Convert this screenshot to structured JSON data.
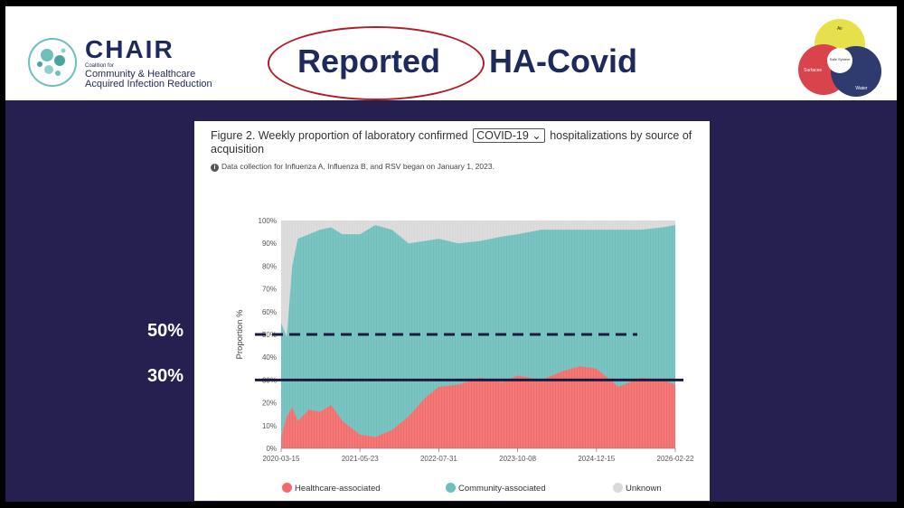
{
  "header": {
    "logo_word": "CHAIR",
    "logo_coalition": "Coalition for",
    "logo_line1": "Community & Healthcare",
    "logo_line2": "Acquired Infection Reduction",
    "title_circled": "Reported",
    "title_rest": "HA-Covid",
    "venn_labels": [
      "Air",
      "Safe System",
      "Surfaces",
      "Water"
    ]
  },
  "colors": {
    "healthcare": "#f26b6b",
    "community": "#6fbfbd",
    "unknown": "#d9d9d9",
    "navy": "#25204f",
    "oval": "#b01e2b"
  },
  "figure": {
    "title_before": "Figure 2. Weekly proportion of laboratory confirmed",
    "select_value": "COVID-19",
    "title_after": "hospitalizations by source of acquisition",
    "note": "Data collection for Influenza A, Influenza B, and RSV began on January 1, 2023."
  },
  "annotations": {
    "line_50_label": "50%",
    "line_30_label": "30%"
  },
  "chart_data": {
    "type": "area",
    "stacked": true,
    "ylabel": "Proportion %",
    "xlabel": "",
    "ylim": [
      0,
      100
    ],
    "yticks": [
      "0%",
      "10%",
      "20%",
      "30%",
      "40%",
      "50%",
      "60%",
      "70%",
      "80%",
      "90%",
      "100%"
    ],
    "xticks": [
      "2020-03-15",
      "2021-05-23",
      "2022-07-31",
      "2023-10-08",
      "2024-12-15",
      "2026-02-22"
    ],
    "x": [
      "2020-03-15",
      "2020-04-15",
      "2020-05-15",
      "2020-06-15",
      "2020-08-15",
      "2020-10-15",
      "2020-12-15",
      "2021-02-15",
      "2021-05-23",
      "2021-08-15",
      "2021-11-15",
      "2022-02-15",
      "2022-05-15",
      "2022-07-31",
      "2022-11-15",
      "2023-03-15",
      "2023-07-15",
      "2023-10-08",
      "2024-02-15",
      "2024-06-15",
      "2024-09-15",
      "2024-12-15",
      "2025-04-15",
      "2025-08-15",
      "2025-12-15",
      "2026-02-22"
    ],
    "series": [
      {
        "name": "Healthcare-associated",
        "values": [
          5,
          14,
          18,
          12,
          17,
          16,
          19,
          12,
          6,
          5,
          8,
          14,
          22,
          27,
          28,
          31,
          29,
          32,
          30,
          34,
          36,
          35,
          27,
          31,
          30,
          28
        ]
      },
      {
        "name": "Community-associated",
        "values": [
          50,
          35,
          62,
          80,
          77,
          80,
          78,
          82,
          88,
          93,
          88,
          76,
          69,
          65,
          62,
          60,
          64,
          62,
          66,
          62,
          60,
          61,
          69,
          65,
          67,
          70
        ]
      },
      {
        "name": "Unknown",
        "values": [
          45,
          51,
          20,
          8,
          6,
          4,
          3,
          6,
          6,
          2,
          4,
          10,
          9,
          8,
          10,
          9,
          7,
          6,
          4,
          4,
          4,
          4,
          4,
          4,
          3,
          2
        ]
      }
    ],
    "reference_lines": [
      {
        "value": 50,
        "style": "dashed",
        "label": "50%"
      },
      {
        "value": 30,
        "style": "solid",
        "label": "30%"
      }
    ],
    "legend_position": "bottom",
    "grid": true
  }
}
